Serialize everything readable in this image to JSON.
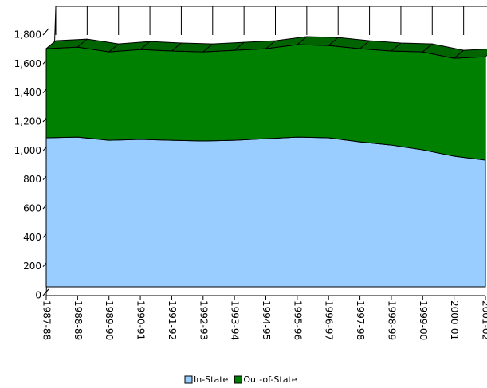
{
  "chart_data": {
    "type": "area",
    "stacked": true,
    "categories": [
      "1987-88",
      "1988-89",
      "1989-90",
      "1990-91",
      "1991-92",
      "1992-93",
      "1993-94",
      "1994-95",
      "1995-96",
      "1996-97",
      "1997-98",
      "1998-99",
      "1999-00",
      "2000-01",
      "2001-02"
    ],
    "series": [
      {
        "name": "In-State",
        "color": "#99ccff",
        "values": [
          1090,
          1095,
          1073,
          1079,
          1073,
          1068,
          1073,
          1084,
          1095,
          1090,
          1062,
          1040,
          1007,
          963,
          936
        ]
      },
      {
        "name": "Out-of-State",
        "color": "#008000",
        "values": [
          616,
          622,
          611,
          621,
          617,
          616,
          622,
          622,
          639,
          638,
          644,
          650,
          677,
          677,
          715
        ]
      }
    ],
    "ylim": [
      0,
      1800
    ],
    "yticks": [
      0,
      200,
      400,
      600,
      800,
      {
        "value": 1000,
        "label": "1,000"
      },
      {
        "value": 1200,
        "label": "1,200"
      },
      {
        "value": 1400,
        "label": "1,400"
      },
      {
        "value": 1600,
        "label": "1,600"
      },
      {
        "value": 1800,
        "label": "1,800"
      }
    ],
    "legend": "bottom"
  }
}
